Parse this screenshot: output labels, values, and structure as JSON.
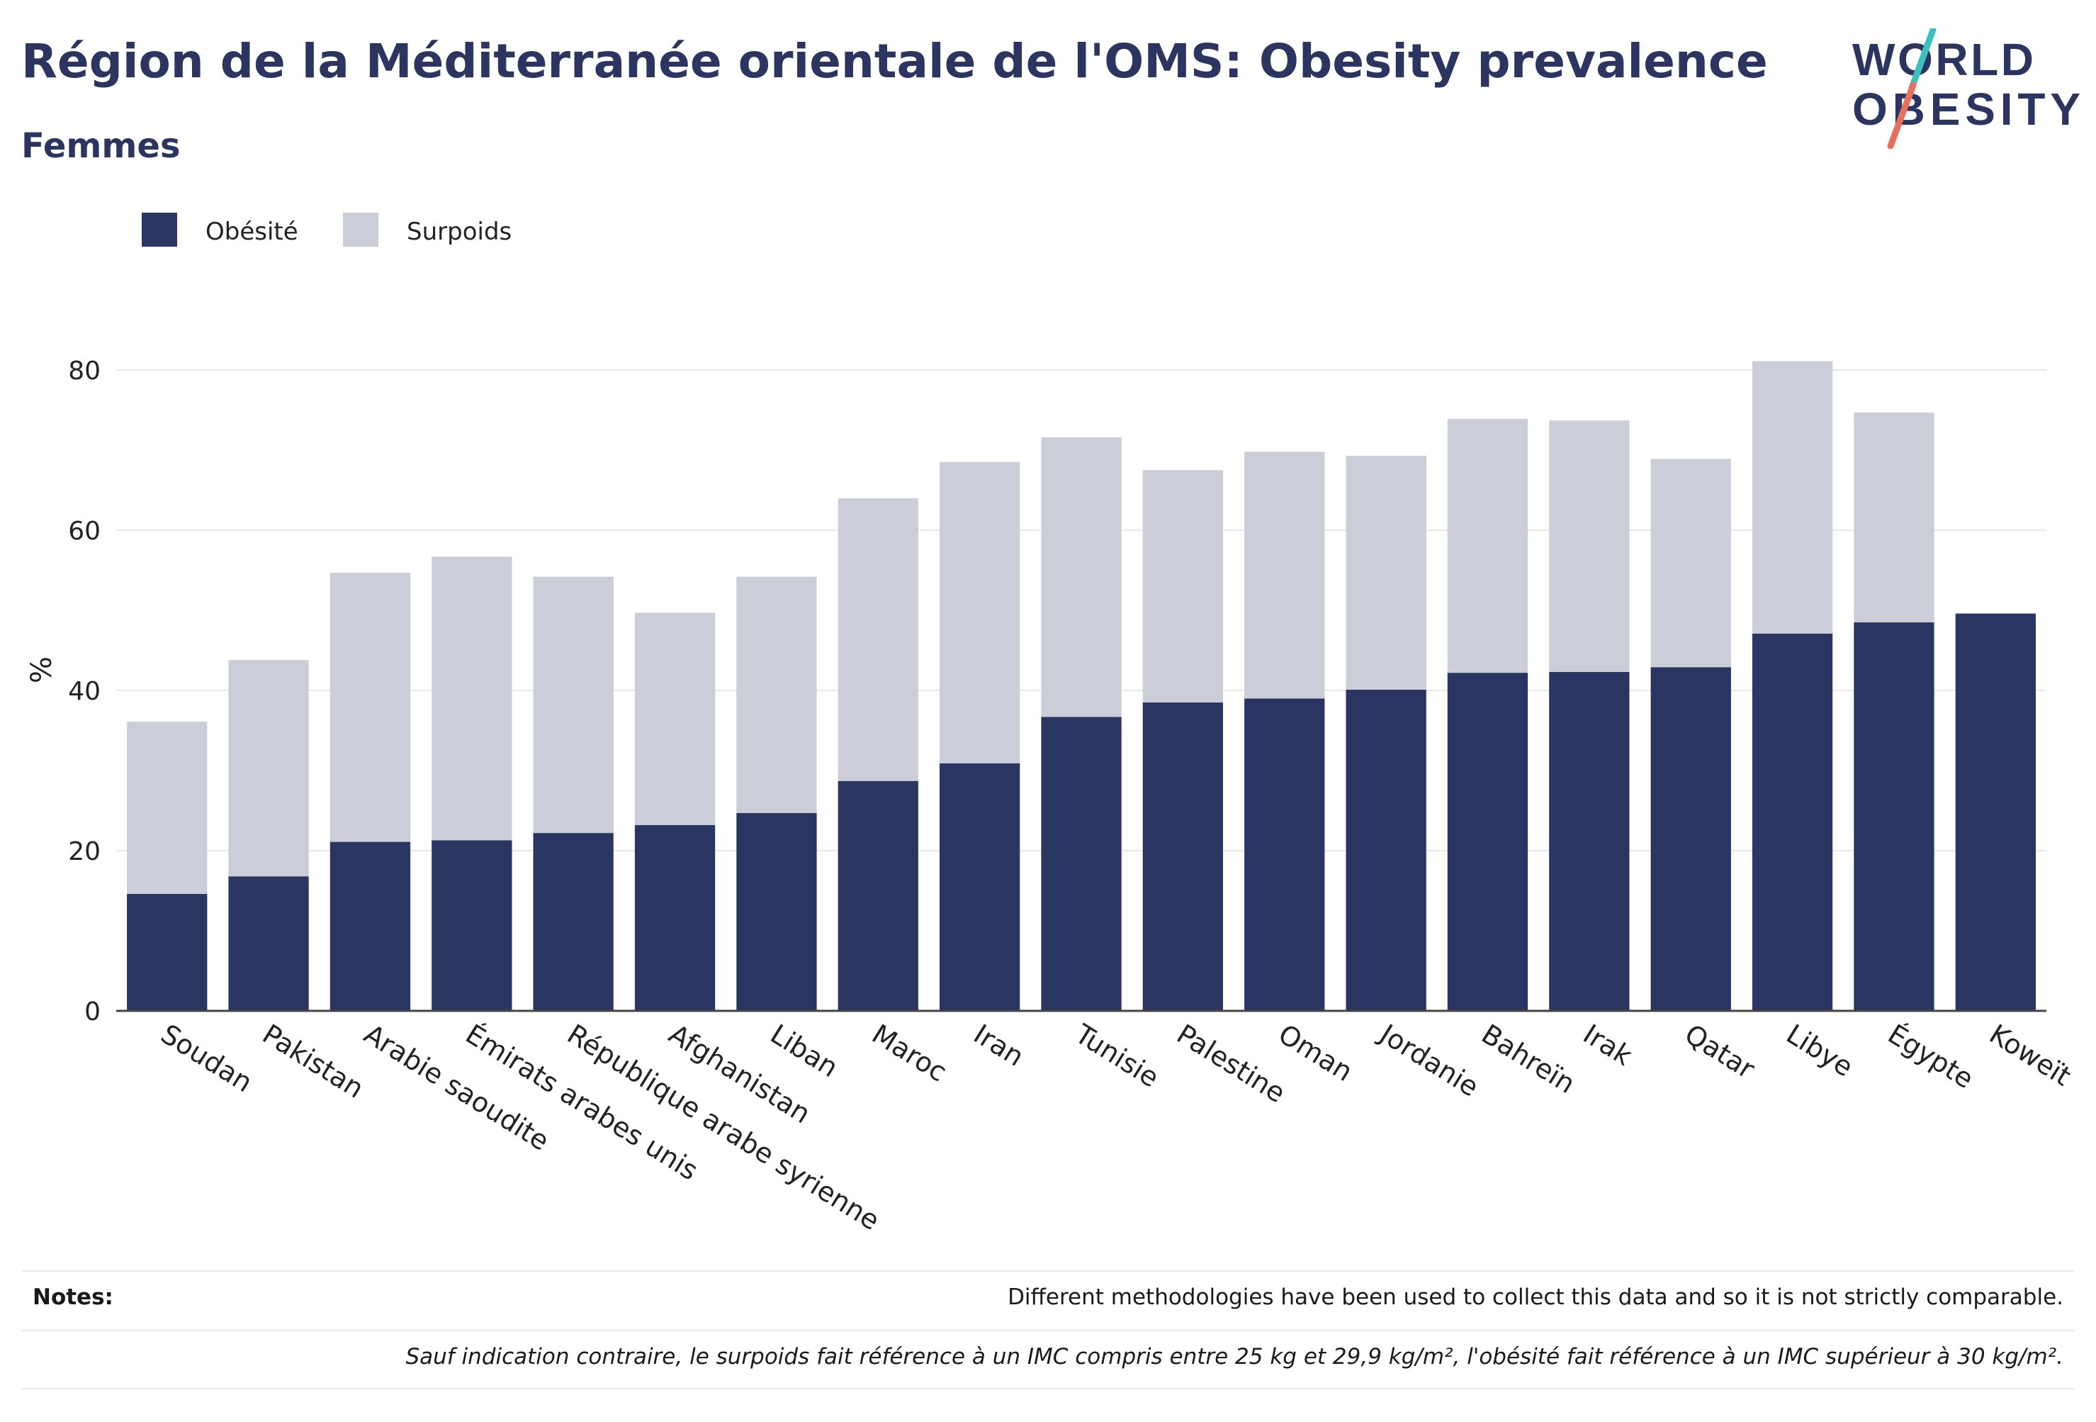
{
  "title": "Région de la Méditerranée orientale de l'OMS: Obesity prevalence",
  "subtitle": "Femmes",
  "logo": {
    "line1": "WORLD",
    "line2": "OBESITY"
  },
  "notes": {
    "label": "Notes:",
    "text": "Different methodologies have been used to collect this data and so it is not strictly comparable.",
    "definition": "Sauf indication contraire, le surpoids fait référence à un IMC compris entre 25 kg et 29,9 kg/m², l'obésité fait référence à un IMC supérieur à 30 kg/m²."
  },
  "colors": {
    "obesity": "#2b3561",
    "overweight": "#cbcdd9",
    "text": "#2b355f",
    "grid": "#e6e8ee",
    "logo_teal": "#3bbfbf",
    "logo_coral": "#e8705f"
  },
  "chart_data": {
    "type": "bar",
    "stacked": true,
    "ylabel": "%",
    "ylim": [
      0,
      90
    ],
    "yticks": [
      0,
      20,
      40,
      60,
      80
    ],
    "grid": true,
    "legend_position": "top-left",
    "categories": [
      "Soudan",
      "Pakistan",
      "Arabie saoudite",
      "Émirats arabes unis",
      "République arabe syrienne",
      "Afghanistan",
      "Liban",
      "Maroc",
      "Iran",
      "Tunisie",
      "Palestine",
      "Oman",
      "Jordanie",
      "Bahreïn",
      "Irak",
      "Qatar",
      "Libye",
      "Égypte",
      "Koweït"
    ],
    "series": [
      {
        "name": "Obésité",
        "color": "#2b3561",
        "values": [
          14.6,
          16.8,
          21.1,
          21.3,
          22.2,
          23.2,
          24.7,
          28.7,
          30.9,
          36.7,
          38.5,
          39.0,
          40.1,
          42.2,
          42.3,
          42.9,
          47.1,
          48.5,
          49.6
        ]
      },
      {
        "name": "Surpoids",
        "color": "#cbcdd9",
        "values": [
          21.5,
          27.0,
          33.6,
          35.4,
          32.0,
          26.5,
          29.5,
          35.3,
          37.6,
          34.9,
          29.0,
          30.8,
          29.2,
          31.7,
          31.4,
          26.0,
          34.0,
          26.2,
          0
        ]
      }
    ]
  }
}
